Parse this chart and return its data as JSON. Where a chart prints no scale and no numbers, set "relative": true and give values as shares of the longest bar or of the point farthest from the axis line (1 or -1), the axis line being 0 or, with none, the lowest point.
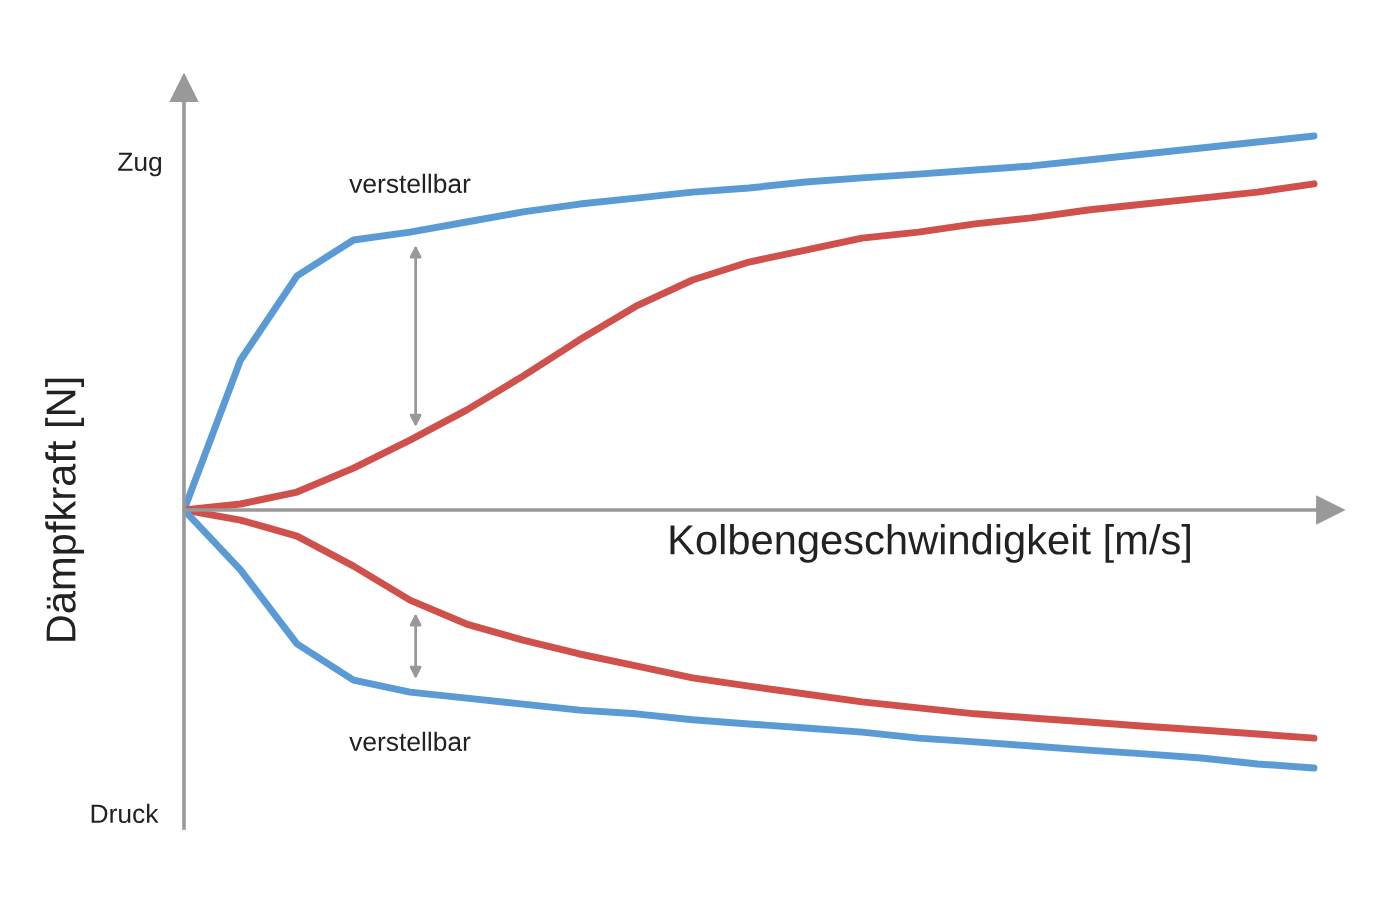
{
  "chart_data": {
    "type": "line",
    "relative": true,
    "xlabel": "Kolbengeschwindigkeit [m/s]",
    "ylabel": "Dämpfkraft [N]",
    "categories": [
      null,
      null,
      null,
      null,
      null,
      null,
      null,
      null,
      null,
      null,
      null,
      null,
      null,
      null,
      null,
      null,
      null,
      null,
      null,
      null,
      null
    ],
    "series": [
      {
        "color": "#5b9bd5",
        "values": [
          0,
          0.401,
          0.626,
          0.722,
          0.743,
          0.77,
          0.797,
          0.818,
          0.834,
          0.85,
          0.861,
          0.877,
          0.888,
          0.898,
          0.909,
          0.92,
          0.936,
          0.952,
          0.968,
          0.984,
          1
        ]
      },
      {
        "color": "#d0504c",
        "values": [
          0,
          0.016,
          0.048,
          0.112,
          0.187,
          0.267,
          0.358,
          0.455,
          0.545,
          0.615,
          0.663,
          0.695,
          0.727,
          0.743,
          0.765,
          0.781,
          0.802,
          0.818,
          0.834,
          0.85,
          0.872
        ]
      },
      {
        "color": "#d0504c",
        "values": [
          0,
          -0.027,
          -0.07,
          -0.15,
          -0.241,
          -0.305,
          -0.348,
          -0.385,
          -0.417,
          -0.449,
          -0.471,
          -0.492,
          -0.513,
          -0.529,
          -0.545,
          -0.556,
          -0.567,
          -0.578,
          -0.588,
          -0.599,
          -0.61
        ]
      },
      {
        "color": "#5b9bd5",
        "values": [
          0,
          -0.16,
          -0.358,
          -0.455,
          -0.487,
          -0.503,
          -0.519,
          -0.535,
          -0.545,
          -0.561,
          -0.572,
          -0.583,
          -0.594,
          -0.61,
          -0.62,
          -0.631,
          -0.642,
          -0.652,
          -0.663,
          -0.679,
          -0.69
        ]
      }
    ],
    "annotations": [
      "Zug",
      "verstellbar",
      "verstellbar",
      "Druck"
    ],
    "legend": false,
    "marker": "none",
    "line_style": "solid"
  }
}
